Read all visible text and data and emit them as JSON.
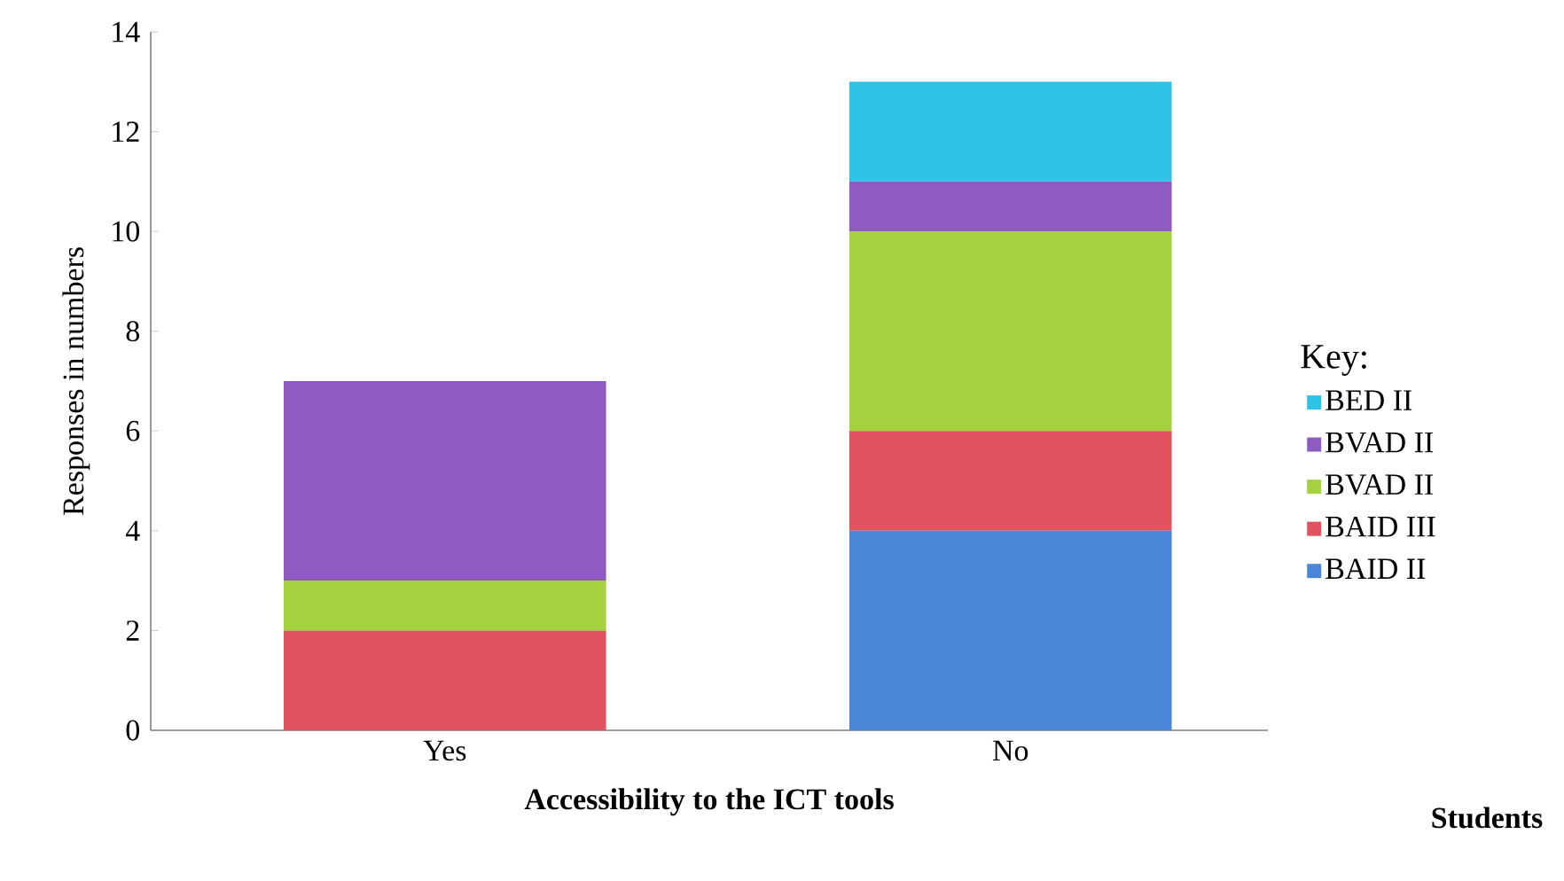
{
  "chart_data": {
    "type": "bar",
    "stacked": true,
    "categories": [
      "Yes",
      "No"
    ],
    "xlabel": "Accessibility to the ICT tools",
    "ylabel": "Responses in numbers",
    "ylim": [
      0,
      14
    ],
    "yticks": [
      0,
      2,
      4,
      6,
      8,
      10,
      12,
      14
    ],
    "grid": false,
    "legend": "right",
    "legend_title": "Key:",
    "series": [
      {
        "name": "BAID II",
        "color": "#4a86d8",
        "values": [
          0,
          4
        ]
      },
      {
        "name": "BAID III",
        "color": "#e0535e",
        "values": [
          2,
          2
        ]
      },
      {
        "name": "BVAD II",
        "color": "#a5d13f",
        "values": [
          1,
          4
        ]
      },
      {
        "name": "BVAD II",
        "color": "#8e5bc0",
        "values": [
          4,
          1
        ]
      },
      {
        "name": "BED II",
        "color": "#2ec3e6",
        "values": [
          0,
          2
        ]
      }
    ],
    "annotations": [
      "Students"
    ]
  }
}
